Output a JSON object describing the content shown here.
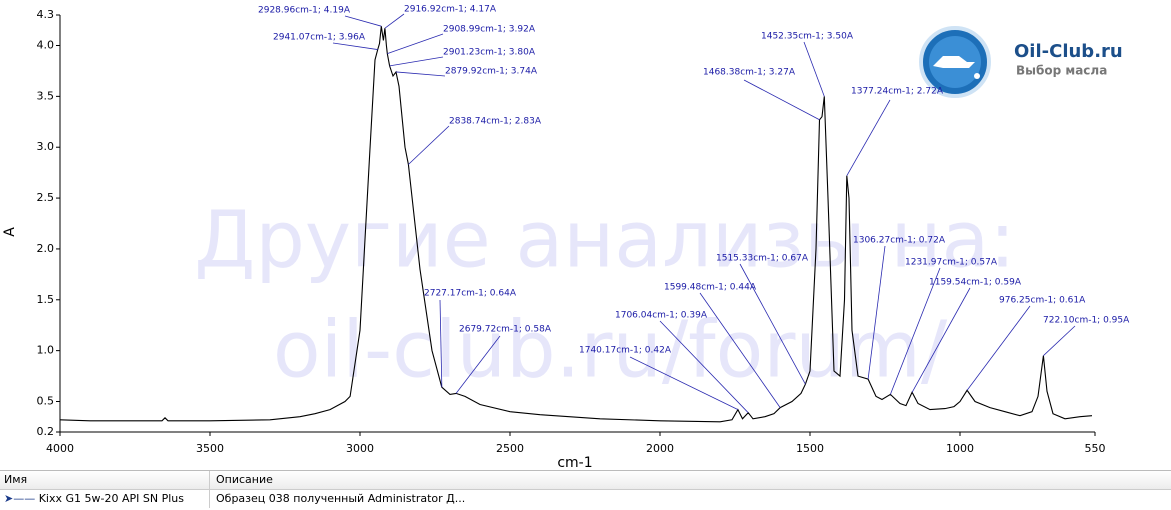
{
  "chart_data": {
    "type": "line",
    "xlabel": "cm-1",
    "ylabel": "A",
    "color": "#000000",
    "x": [
      4000,
      3900,
      3800,
      3700,
      3660,
      3650,
      3640,
      3500,
      3300,
      3200,
      3150,
      3100,
      3050,
      3033,
      3000,
      2967,
      2950,
      2941.07,
      2935,
      2928.96,
      2922,
      2916.92,
      2912,
      2908.99,
      2901.23,
      2890,
      2879.92,
      2870,
      2850,
      2838.74,
      2800,
      2760,
      2727.17,
      2700,
      2679.72,
      2650,
      2600,
      2500,
      2400,
      2200,
      2000,
      1800,
      1760,
      1740.17,
      1725,
      1706.04,
      1690,
      1650,
      1620,
      1599.48,
      1560,
      1530,
      1515.33,
      1500,
      1480,
      1468.38,
      1460,
      1452.35,
      1440,
      1420,
      1400,
      1385,
      1377.24,
      1370,
      1360,
      1340,
      1306.27,
      1280,
      1260,
      1231.97,
      1200,
      1180,
      1159.54,
      1140,
      1100,
      1050,
      1020,
      1000,
      976.25,
      950,
      900,
      850,
      800,
      760,
      740,
      722.1,
      710,
      690,
      650,
      600,
      560
    ],
    "values": [
      0.32,
      0.31,
      0.31,
      0.31,
      0.31,
      0.34,
      0.31,
      0.31,
      0.32,
      0.35,
      0.38,
      0.42,
      0.5,
      0.55,
      1.2,
      2.97,
      3.86,
      3.96,
      4.02,
      4.19,
      4.05,
      4.17,
      4.0,
      3.92,
      3.8,
      3.7,
      3.74,
      3.6,
      3.0,
      2.83,
      1.8,
      1.0,
      0.64,
      0.57,
      0.58,
      0.55,
      0.47,
      0.4,
      0.37,
      0.33,
      0.31,
      0.3,
      0.32,
      0.42,
      0.33,
      0.39,
      0.33,
      0.35,
      0.38,
      0.44,
      0.5,
      0.58,
      0.67,
      0.8,
      2.0,
      3.27,
      3.3,
      3.5,
      2.5,
      0.8,
      0.75,
      1.5,
      2.72,
      2.5,
      1.2,
      0.75,
      0.72,
      0.55,
      0.52,
      0.57,
      0.48,
      0.46,
      0.59,
      0.48,
      0.42,
      0.43,
      0.45,
      0.5,
      0.61,
      0.5,
      0.44,
      0.4,
      0.36,
      0.4,
      0.55,
      0.95,
      0.6,
      0.38,
      0.33,
      0.35,
      0.36
    ],
    "xlim": [
      4000,
      550
    ],
    "xticks": [
      4000,
      3500,
      3000,
      2500,
      2000,
      1500,
      1000,
      550
    ],
    "ylim": [
      0.2,
      4.3
    ],
    "yticks": [
      0.2,
      0.5,
      {
        "value": 1,
        "label": "1.0"
      },
      1.5,
      {
        "value": 2,
        "label": "2.0"
      },
      2.5,
      {
        "value": 3,
        "label": "3.0"
      },
      3.5,
      {
        "value": 4,
        "label": "4.0"
      },
      4.3
    ],
    "annotations": [
      {
        "text": "2928.96cm-1; 4.19A",
        "x": 2928.96,
        "y": 4.19
      },
      {
        "text": "2916.92cm-1; 4.17A",
        "x": 2916.92,
        "y": 4.17
      },
      {
        "text": "2941.07cm-1; 3.96A",
        "x": 2941.07,
        "y": 3.96
      },
      {
        "text": "2908.99cm-1; 3.92A",
        "x": 2908.99,
        "y": 3.92
      },
      {
        "text": "2901.23cm-1; 3.80A",
        "x": 2901.23,
        "y": 3.8
      },
      {
        "text": "2879.92cm-1; 3.74A",
        "x": 2879.92,
        "y": 3.74
      },
      {
        "text": "2838.74cm-1; 2.83A",
        "x": 2838.74,
        "y": 2.83
      },
      {
        "text": "2727.17cm-1; 0.64A",
        "x": 2727.17,
        "y": 0.64
      },
      {
        "text": "2679.72cm-1; 0.58A",
        "x": 2679.72,
        "y": 0.58
      },
      {
        "text": "1452.35cm-1; 3.50A",
        "x": 1452.35,
        "y": 3.5
      },
      {
        "text": "1468.38cm-1; 3.27A",
        "x": 1468.38,
        "y": 3.27
      },
      {
        "text": "1377.24cm-1; 2.72A",
        "x": 1377.24,
        "y": 2.72
      },
      {
        "text": "1306.27cm-1; 0.72A",
        "x": 1306.27,
        "y": 0.72
      },
      {
        "text": "1231.97cm-1; 0.57A",
        "x": 1231.97,
        "y": 0.57
      },
      {
        "text": "1515.33cm-1; 0.67A",
        "x": 1515.33,
        "y": 0.67
      },
      {
        "text": "1599.48cm-1; 0.44A",
        "x": 1599.48,
        "y": 0.44
      },
      {
        "text": "1706.04cm-1; 0.39A",
        "x": 1706.04,
        "y": 0.39
      },
      {
        "text": "1740.17cm-1; 0.42A",
        "x": 1740.17,
        "y": 0.42
      },
      {
        "text": "1159.54cm-1; 0.59A",
        "x": 1159.54,
        "y": 0.59
      },
      {
        "text": "976.25cm-1; 0.61A",
        "x": 976.25,
        "y": 0.61
      },
      {
        "text": "722.10cm-1; 0.95A",
        "x": 722.1,
        "y": 0.95
      }
    ]
  },
  "watermark": [
    "Другие анализы на:",
    "oil-club.ru/forum/"
  ],
  "logo": {
    "title": "Oil-Club.ru",
    "subtitle": "Выбор масла"
  },
  "table": {
    "columns": [
      "Имя",
      "Описание"
    ],
    "rows": [
      [
        "Kixx G1 5w-20 API SN Plus",
        "Образец 038 полученный Administrator Д..."
      ]
    ]
  }
}
